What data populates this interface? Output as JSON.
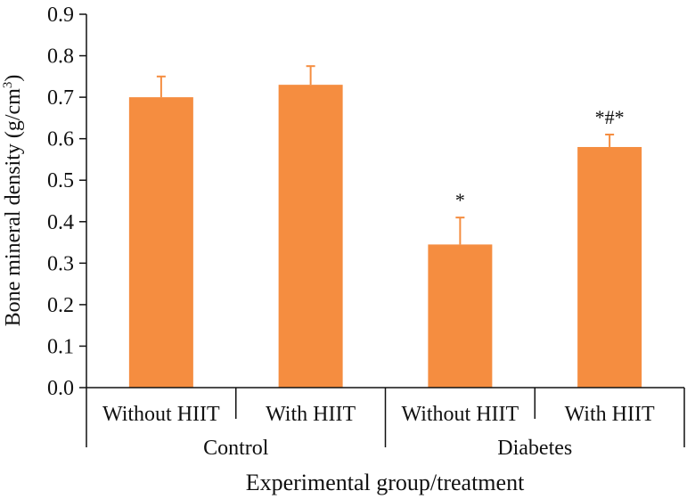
{
  "chart_data": {
    "type": "bar",
    "title": "",
    "ylabel": "Bone mineral density (g/cm",
    "ylabel_sup": "3",
    "ylabel_close": ")",
    "xlabel": "Experimental group/treatment",
    "ylim": [
      0,
      0.9
    ],
    "yticks": [
      "0.0",
      "0.1",
      "0.2",
      "0.3",
      "0.4",
      "0.5",
      "0.6",
      "0.7",
      "0.8",
      "0.9"
    ],
    "categories": [
      "Without HIIT",
      "With HIIT",
      "Without HIIT",
      "With HIIT"
    ],
    "groups": [
      {
        "label": "Control",
        "span": [
          0,
          1
        ]
      },
      {
        "label": "Diabetes",
        "span": [
          2,
          3
        ]
      }
    ],
    "values": [
      0.7,
      0.73,
      0.345,
      0.58
    ],
    "errors": [
      0.05,
      0.045,
      0.065,
      0.03
    ],
    "annotations": [
      "",
      "",
      "*",
      "*#*"
    ],
    "bar_color": "#f58d40",
    "grid": false,
    "legend": "none"
  }
}
